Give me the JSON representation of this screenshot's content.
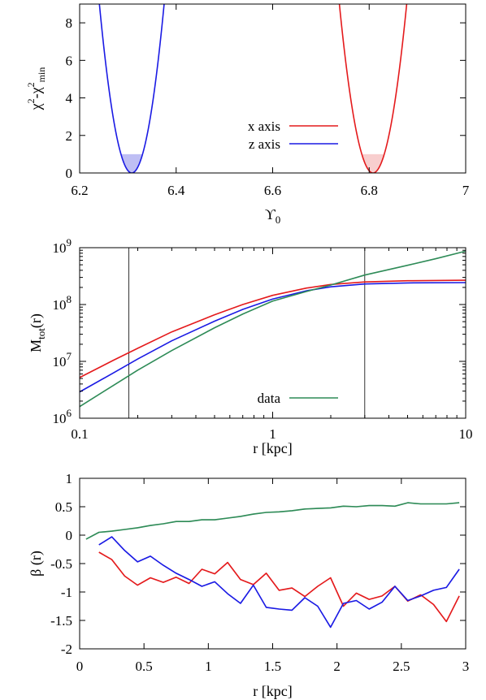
{
  "colors": {
    "x_axis": "#e41a1c",
    "z_axis": "#1a1ae4",
    "data": "#2e8b57",
    "x_fill": "#f7c6c6",
    "z_fill": "#b3b3f2"
  },
  "chart_data": [
    {
      "type": "line",
      "xlabel": "ϒ",
      "xlabel_sub": "0",
      "ylabel_parts": [
        "χ",
        "2",
        "-χ",
        "2",
        "min"
      ],
      "xlim": [
        6.2,
        7.0
      ],
      "ylim": [
        0,
        9
      ],
      "xticks": [
        "6.2",
        "6.4",
        "6.6",
        "6.8",
        "7"
      ],
      "yticks": [
        "0",
        "2",
        "4",
        "6",
        "8"
      ],
      "legend_placement": "center",
      "series": [
        {
          "name": "x axis",
          "color": "#e41a1c",
          "min_x": 6.808,
          "min_y": 0.0,
          "curvature": 1850,
          "shaded_band": [
            0,
            1
          ]
        },
        {
          "name": "z axis",
          "color": "#1a1ae4",
          "min_x": 6.308,
          "min_y": 0.0,
          "curvature": 2000,
          "shaded_band": [
            0,
            1
          ]
        }
      ]
    },
    {
      "type": "line",
      "xlabel": "r [kpc]",
      "ylabel": "M",
      "ylabel_sub": "tot",
      "ylabel_tail": "(r)",
      "xscale": "log",
      "yscale": "log",
      "xlim": [
        0.1,
        10
      ],
      "ylim": [
        1000000,
        1000000000
      ],
      "xticks": [
        {
          "v": 0.1,
          "label": "0.1"
        },
        {
          "v": 1,
          "label": "1"
        },
        {
          "v": 10,
          "label": "10"
        }
      ],
      "yticks": [
        {
          "v": 1000000,
          "exp": "6"
        },
        {
          "v": 10000000,
          "exp": "7"
        },
        {
          "v": 100000000,
          "exp": "8"
        },
        {
          "v": 1000000000,
          "exp": "9"
        }
      ],
      "vlines": [
        0.18,
        3.0
      ],
      "legend_placement": "bottom-center",
      "series": [
        {
          "name": "",
          "color": "#e41a1c",
          "x": [
            0.1,
            0.15,
            0.2,
            0.3,
            0.5,
            0.7,
            1.0,
            1.5,
            2.0,
            3.0,
            5.0,
            10.0
          ],
          "y": [
            5200000,
            10500000,
            17000000,
            33000000,
            66000000,
            100000000,
            145000000,
            195000000,
            225000000,
            250000000,
            262000000,
            268000000
          ]
        },
        {
          "name": "",
          "color": "#1a1ae4",
          "x": [
            0.1,
            0.15,
            0.2,
            0.3,
            0.5,
            0.7,
            1.0,
            1.5,
            2.0,
            3.0,
            5.0,
            10.0
          ],
          "y": [
            2900000,
            6300000,
            11000000,
            23000000,
            51000000,
            82000000,
            125000000,
            175000000,
            205000000,
            230000000,
            240000000,
            243000000
          ]
        },
        {
          "name": "data",
          "color": "#2e8b57",
          "x": [
            0.1,
            0.15,
            0.2,
            0.3,
            0.5,
            0.7,
            1.0,
            1.5,
            2.0,
            3.0,
            5.0,
            7.0,
            10.0
          ],
          "y": [
            1600000,
            3800000,
            7000000,
            15500000,
            39000000,
            68000000,
            115000000,
            170000000,
            220000000,
            330000000,
            490000000,
            640000000,
            870000000
          ]
        }
      ]
    },
    {
      "type": "line",
      "xlabel": "r [kpc]",
      "ylabel": "β (r)",
      "xlim": [
        0,
        3
      ],
      "ylim": [
        -2,
        1
      ],
      "xticks": [
        "0",
        "0.5",
        "1",
        "1.5",
        "2",
        "2.5",
        "3"
      ],
      "yticks": [
        "-2",
        "-1.5",
        "-1",
        "-0.5",
        "0",
        "0.5",
        "1"
      ],
      "series": [
        {
          "name": "",
          "color": "#2e8b57",
          "x": [
            0.05,
            0.15,
            0.25,
            0.35,
            0.45,
            0.55,
            0.65,
            0.75,
            0.85,
            0.95,
            1.05,
            1.15,
            1.25,
            1.35,
            1.45,
            1.55,
            1.65,
            1.75,
            1.85,
            1.95,
            2.05,
            2.15,
            2.25,
            2.35,
            2.45,
            2.55,
            2.65,
            2.75,
            2.85,
            2.95
          ],
          "y": [
            -0.07,
            0.05,
            0.07,
            0.1,
            0.13,
            0.17,
            0.2,
            0.24,
            0.24,
            0.27,
            0.27,
            0.3,
            0.33,
            0.37,
            0.4,
            0.41,
            0.43,
            0.46,
            0.47,
            0.48,
            0.51,
            0.5,
            0.52,
            0.52,
            0.51,
            0.57,
            0.55,
            0.55,
            0.55,
            0.57
          ]
        },
        {
          "name": "",
          "color": "#e41a1c",
          "x": [
            0.15,
            0.25,
            0.35,
            0.45,
            0.55,
            0.65,
            0.75,
            0.85,
            0.95,
            1.05,
            1.15,
            1.25,
            1.35,
            1.45,
            1.55,
            1.65,
            1.75,
            1.85,
            1.95,
            2.05,
            2.15,
            2.25,
            2.35,
            2.45,
            2.55,
            2.65,
            2.75,
            2.85,
            2.95
          ],
          "y": [
            -0.3,
            -0.43,
            -0.72,
            -0.88,
            -0.75,
            -0.83,
            -0.74,
            -0.85,
            -0.6,
            -0.68,
            -0.48,
            -0.78,
            -0.87,
            -0.67,
            -0.97,
            -0.93,
            -1.08,
            -0.9,
            -0.75,
            -1.25,
            -1.02,
            -1.13,
            -1.07,
            -0.9,
            -1.16,
            -1.05,
            -1.22,
            -1.52,
            -1.07
          ]
        },
        {
          "name": "",
          "color": "#1a1ae4",
          "x": [
            0.15,
            0.25,
            0.35,
            0.45,
            0.55,
            0.65,
            0.75,
            0.85,
            0.95,
            1.05,
            1.15,
            1.25,
            1.35,
            1.45,
            1.55,
            1.65,
            1.75,
            1.85,
            1.95,
            2.05,
            2.15,
            2.25,
            2.35,
            2.45,
            2.55,
            2.65,
            2.75,
            2.85,
            2.95
          ],
          "y": [
            -0.17,
            -0.03,
            -0.27,
            -0.47,
            -0.37,
            -0.53,
            -0.67,
            -0.78,
            -0.9,
            -0.82,
            -1.03,
            -1.2,
            -0.88,
            -1.27,
            -1.3,
            -1.32,
            -1.1,
            -1.25,
            -1.62,
            -1.2,
            -1.15,
            -1.3,
            -1.18,
            -0.9,
            -1.15,
            -1.07,
            -0.97,
            -0.92,
            -0.6
          ]
        }
      ]
    }
  ]
}
